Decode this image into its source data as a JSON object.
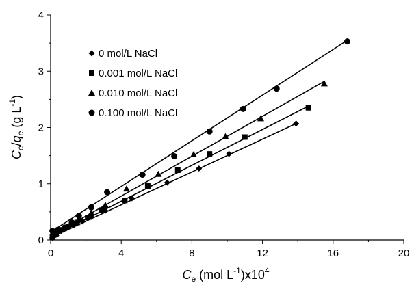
{
  "chart_data": {
    "type": "scatter",
    "title": "",
    "xlabel": {
      "main": "C",
      "sub": "e",
      "rest": " (mol L",
      "sup": "-1",
      "end": ")x10",
      "sup2": "4"
    },
    "ylabel": {
      "c": "C",
      "csub": "e",
      "slash": "/",
      "q": "q",
      "qsub": "e",
      "rest": " (g L",
      "sup": "-1",
      "end": ")"
    },
    "xlim": [
      0,
      20
    ],
    "ylim": [
      0,
      4
    ],
    "xticks": [
      0,
      4,
      8,
      12,
      16,
      20
    ],
    "yticks": [
      0,
      1,
      2,
      3,
      4
    ],
    "grid": false,
    "legend_position": "top-left",
    "series": [
      {
        "name": "0 mol/L NaCl",
        "marker": "diamond",
        "x": [
          0.1,
          0.3,
          0.6,
          0.9,
          1.3,
          1.8,
          2.3,
          3.1,
          4.6,
          6.6,
          8.4,
          10.1,
          13.9
        ],
        "y": [
          0.04,
          0.09,
          0.16,
          0.21,
          0.26,
          0.33,
          0.41,
          0.52,
          0.74,
          1.02,
          1.27,
          1.53,
          2.07
        ],
        "fit": [
          [
            0,
            0.04
          ],
          [
            13.9,
            2.07
          ]
        ]
      },
      {
        "name": "0.001 mol/L NaCl",
        "marker": "square",
        "x": [
          0.1,
          0.3,
          0.6,
          1.0,
          1.5,
          2.1,
          2.9,
          4.2,
          5.5,
          7.2,
          9.0,
          11.0,
          14.6
        ],
        "y": [
          0.05,
          0.1,
          0.18,
          0.24,
          0.31,
          0.4,
          0.53,
          0.7,
          0.96,
          1.24,
          1.53,
          1.83,
          2.35
        ],
        "fit": [
          [
            0,
            0.05
          ],
          [
            14.6,
            2.38
          ]
        ]
      },
      {
        "name": "0.010 mol/L NaCl",
        "marker": "triangle",
        "x": [
          0.1,
          0.3,
          0.7,
          1.1,
          1.6,
          2.3,
          3.1,
          4.3,
          6.1,
          8.1,
          9.9,
          11.9,
          15.5
        ],
        "y": [
          0.06,
          0.12,
          0.21,
          0.28,
          0.38,
          0.48,
          0.62,
          0.91,
          1.17,
          1.52,
          1.84,
          2.16,
          2.78
        ],
        "fit": [
          [
            0,
            0.07
          ],
          [
            15.5,
            2.82
          ]
        ]
      },
      {
        "name": "0.100 mol/L NaCl",
        "marker": "circle",
        "x": [
          0.1,
          0.4,
          0.8,
          1.2,
          1.6,
          2.3,
          3.2,
          5.2,
          7.0,
          9.0,
          10.9,
          12.8,
          16.8
        ],
        "y": [
          0.16,
          0.18,
          0.22,
          0.31,
          0.43,
          0.58,
          0.85,
          1.16,
          1.49,
          1.93,
          2.33,
          2.69,
          3.53
        ],
        "fit": [
          [
            0,
            0.14
          ],
          [
            16.8,
            3.55
          ]
        ]
      }
    ]
  }
}
